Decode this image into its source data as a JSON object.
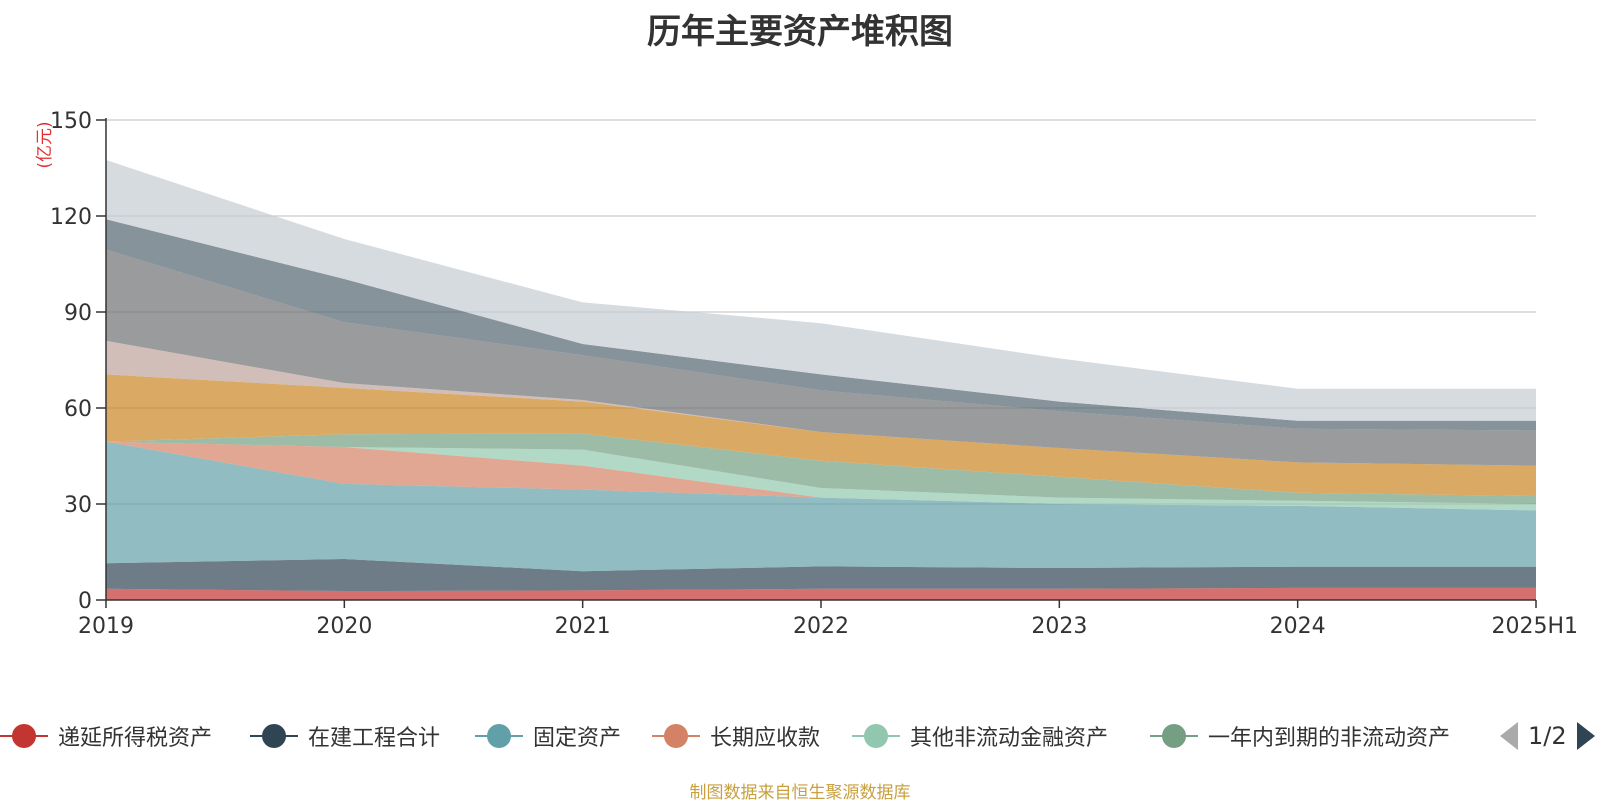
{
  "chart_data": {
    "type": "area",
    "stacked": true,
    "title": "历年主要资产堆积图",
    "ylabel": "(亿元)",
    "ylim": [
      0,
      150
    ],
    "yticks": [
      0,
      30,
      60,
      90,
      120,
      150
    ],
    "grid": true,
    "categories": [
      "2019",
      "2020",
      "2021",
      "2022",
      "2023",
      "2024",
      "2025H1"
    ],
    "series": [
      {
        "name": "递延所得税资产",
        "color": "#c23531",
        "values": [
          3.5,
          2.8,
          3.0,
          3.5,
          3.5,
          3.8,
          3.8
        ]
      },
      {
        "name": "在建工程合计",
        "color": "#2f4554",
        "values": [
          8.0,
          10.0,
          6.0,
          7.0,
          6.5,
          6.6,
          6.6
        ]
      },
      {
        "name": "固定资产",
        "color": "#61a0a8",
        "values": [
          38.0,
          23.5,
          25.5,
          21.5,
          20.0,
          19.0,
          17.6
        ]
      },
      {
        "name": "长期应收款",
        "color": "#d48265",
        "values": [
          0.0,
          11.5,
          7.5,
          0.0,
          0.0,
          0.0,
          0.0
        ]
      },
      {
        "name": "其他非流动金融资产",
        "color": "#91c7ae",
        "values": [
          0.0,
          0.0,
          5.0,
          3.0,
          2.0,
          1.6,
          2.0
        ]
      },
      {
        "name": "一年内到期的非流动资产",
        "color": "#749f83",
        "values": [
          0.0,
          4.0,
          5.0,
          8.5,
          6.5,
          2.5,
          2.5
        ]
      },
      {
        "name": "",
        "color": "#ca8622",
        "values": [
          21.0,
          14.5,
          10.0,
          9.0,
          9.0,
          9.5,
          9.5
        ]
      },
      {
        "name": "",
        "color": "#bda29a",
        "values": [
          10.5,
          1.5,
          0.5,
          0.0,
          0.0,
          0.0,
          0.0
        ]
      },
      {
        "name": "",
        "color": "#6e7074",
        "values": [
          28.5,
          19.0,
          14.0,
          13.0,
          11.5,
          10.5,
          11.0
        ]
      },
      {
        "name": "",
        "color": "#546570",
        "values": [
          9.5,
          13.5,
          3.5,
          5.0,
          3.0,
          2.5,
          3.0
        ]
      },
      {
        "name": "",
        "color": "#c4ccd3",
        "values": [
          18.5,
          12.5,
          13.0,
          16.0,
          13.5,
          10.0,
          10.0
        ]
      }
    ],
    "legend_position": "bottom",
    "legend_page": "1/2"
  },
  "source": "制图数据来自恒生聚源数据库"
}
